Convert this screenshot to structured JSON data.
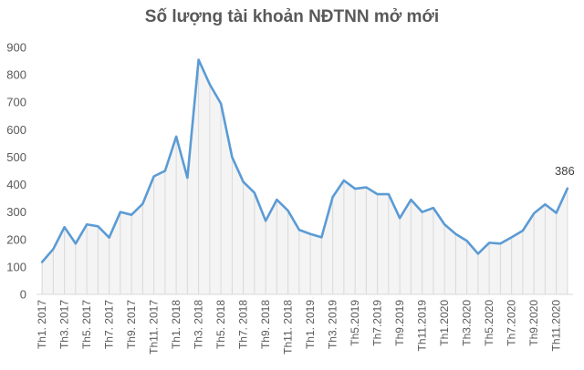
{
  "chart_data": {
    "type": "area",
    "title": "Số lượng tài khoản NĐTNN mở mới",
    "xlabel": "",
    "ylabel": "",
    "ylim": [
      0,
      900
    ],
    "yticks": [
      0,
      100,
      200,
      300,
      400,
      500,
      600,
      700,
      800,
      900
    ],
    "grid": false,
    "legend": "none",
    "colors": {
      "line": "#5B9BD5",
      "area_stroke": "#D9D9D9",
      "axis": "#D9D9D9",
      "text": "#595959"
    },
    "x": [
      "Th1. 2017",
      "Th2. 2017",
      "Th3. 2017",
      "Th4. 2017",
      "Th5. 2017",
      "Th6. 2017",
      "Th7. 2017",
      "Th8. 2017",
      "Th9. 2017",
      "Th10. 2017",
      "Th11. 2017",
      "Th12. 2017",
      "Th1. 2018",
      "Th2. 2018",
      "Th3. 2018",
      "Th4. 2018",
      "Th5. 2018",
      "Th6. 2018",
      "Th7. 2018",
      "Th8. 2018",
      "Th9. 2018",
      "Th10. 2018",
      "Th11. 2018",
      "Th12. 2018",
      "Th1. 2019",
      "Th2. 2019",
      "Th3. 2019",
      "Th4. 2019",
      "Th5.2019",
      "Th6.2019",
      "Th7.2019",
      "Th8.2019",
      "Th9.2019",
      "Th10.2019",
      "Th11.2019",
      "Th12.2019",
      "Th1.2020",
      "Th2.2020",
      "Th3.2020",
      "Th4.2020",
      "Th5.2020",
      "Th6.2020",
      "Th7.2020",
      "Th8.2020",
      "Th9.2020",
      "Th10.2020",
      "Th11.2020",
      "Th12.2020"
    ],
    "tick_labels": [
      "Th1. 2017",
      "Th3. 2017",
      "Th5. 2017",
      "Th7. 2017",
      "Th9. 2017",
      "Th11. 2017",
      "Th1. 2018",
      "Th3. 2018",
      "Th5. 2018",
      "Th7. 2018",
      "Th9. 2018",
      "Th11. 2018",
      "Th1. 2019",
      "Th3. 2019",
      "Th5.2019",
      "Th7.2019",
      "Th9.2019",
      "Th11.2019",
      "Th1.2020",
      "Th3.2020",
      "Th5.2020",
      "Th7.2020",
      "Th9.2020",
      "Th11.2020"
    ],
    "values": [
      118,
      165,
      245,
      185,
      255,
      248,
      207,
      300,
      290,
      330,
      430,
      450,
      575,
      425,
      855,
      765,
      695,
      500,
      410,
      370,
      268,
      345,
      305,
      235,
      220,
      208,
      355,
      415,
      385,
      390,
      365,
      365,
      278,
      345,
      300,
      315,
      255,
      220,
      195,
      148,
      188,
      185,
      208,
      232,
      295,
      328,
      297,
      386
    ],
    "annotations": [
      {
        "label": "386"
      }
    ]
  }
}
